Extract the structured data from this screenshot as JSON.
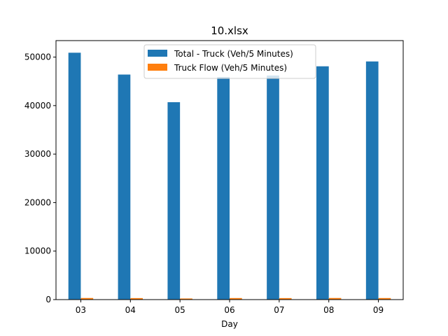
{
  "chart_data": {
    "type": "bar",
    "title": "10.xlsx",
    "xlabel": "Day",
    "ylabel": "",
    "categories": [
      "03",
      "04",
      "05",
      "06",
      "07",
      "08",
      "09"
    ],
    "series": [
      {
        "name": "Total - Truck (Veh/5 Minutes)",
        "color": "#1f77b4",
        "values": [
          50900,
          46400,
          40700,
          45900,
          46200,
          48100,
          49100
        ]
      },
      {
        "name": "Truck Flow (Veh/5 Minutes)",
        "color": "#ff7f0e",
        "values": [
          330,
          310,
          230,
          320,
          310,
          330,
          320
        ]
      }
    ],
    "ylim": [
      0,
      53400
    ],
    "yticks": [
      0,
      10000,
      20000,
      30000,
      40000,
      50000
    ],
    "ytick_labels": [
      "0",
      "10000",
      "20000",
      "30000",
      "40000",
      "50000"
    ],
    "grid": false,
    "legend_position": "top-center"
  }
}
